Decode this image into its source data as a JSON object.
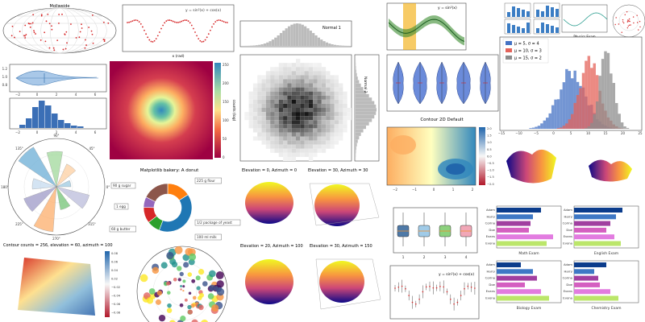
{
  "colors": {
    "blue": "#4472c4",
    "red": "#e4635a",
    "gray": "#8c8c8c",
    "teal": "#2a9d8f",
    "green": "#3a8c2e",
    "orange": "#f2a900",
    "violin": "#5b7fd6"
  },
  "mollweide": {
    "title": "Mollweide"
  },
  "sine_dots": {
    "legend": "y = sin²(x) + cos(x)",
    "xlabel": "x (rad)"
  },
  "normal_top": {
    "label": "Normal 1"
  },
  "band_line": {
    "legend": "y = sin²(x)"
  },
  "physics": {
    "label": "Physics Exam"
  },
  "hist_overlap": {
    "legend": [
      "μ = 5, σ = 4",
      "μ = 10, σ = 3",
      "μ = 15, σ = 2"
    ],
    "ticks": [
      "−15",
      "−10",
      "−5",
      "0",
      "5",
      "10",
      "15",
      "20",
      "25"
    ]
  },
  "violin_h": {
    "ticks": [
      "−2",
      "0",
      "2",
      "4",
      "6"
    ],
    "yticks": [
      "1.2",
      "1.0",
      "0.8"
    ]
  },
  "hist_small": {
    "ticks": [
      "−2",
      "0",
      "2",
      "4",
      "6"
    ]
  },
  "heatmap": {
    "colorbar_label": "counts (log)",
    "ticks": [
      "250",
      "200",
      "150",
      "100",
      "50",
      "0"
    ]
  },
  "gray_hist": {
    "ylabel": "Normal 2"
  },
  "violins": {
    "ticks": [
      "1.0",
      "1.5",
      "2.0",
      "2.5",
      "3.0",
      "3.5",
      "4.0",
      "4.5",
      "5.0"
    ]
  },
  "contour": {
    "title": "Contour 2D Default",
    "cb_ticks": [
      "2.0",
      "1.5",
      "1.0",
      "0.5",
      "0.0",
      "−0.5",
      "−1.0",
      "−1.5",
      "−2.0"
    ],
    "xticks": [
      "−2",
      "−1",
      "0",
      "1",
      "2"
    ]
  },
  "polar_bars": {
    "angles": [
      "90°",
      "180°",
      "270°",
      "0°",
      "45°",
      "135°",
      "225°",
      "315°"
    ]
  },
  "donut": {
    "title": "Matplotlib bakery: A donut",
    "labels": [
      "90 g sugar",
      "225 g flour",
      "1 egg",
      "60 g butter",
      "1/2 package of yeast",
      "100 ml milk"
    ],
    "values": [
      90,
      225,
      50,
      60,
      40,
      100
    ]
  },
  "surfaces": {
    "elev0": "Elevation = 0, Azimuth = 0",
    "elev30": "Elevation = 30, Azimuth = 30",
    "elev20_100": "Elevation = 20, Azimuth = 100",
    "elev30_150": "Elevation = 30, Azimuth = 150"
  },
  "boxplots": {
    "ticks": [
      "1",
      "2",
      "3",
      "4"
    ]
  },
  "bars_math": {
    "label": "Math Exam",
    "names": [
      "Adam",
      "Harry",
      "Corina",
      "Doe",
      "Evans",
      "Evona"
    ]
  },
  "bars_english": {
    "label": "English Exam",
    "names": [
      "Adam",
      "Harry",
      "Corina",
      "Doe",
      "Evans",
      "Evona"
    ]
  },
  "bars_biology": {
    "label": "Biology Exam",
    "names": [
      "Adam",
      "Harry",
      "Corina",
      "Doe",
      "Evans",
      "Evona"
    ]
  },
  "bars_chem": {
    "label": "Chemistry Exam",
    "names": [
      "Adam",
      "Harry",
      "Corina",
      "Doe",
      "Evans",
      "Evona"
    ]
  },
  "contour3d": {
    "title": "Contour counts = 256, elevation = 60, azimuth = 100",
    "cb_ticks": [
      "0.08",
      "0.06",
      "0.04",
      "0.02",
      "−0.02",
      "−0.04",
      "−0.06",
      "−0.08"
    ]
  },
  "errorbar": {
    "legend": "y = sin²(x) + cos(x)"
  },
  "chart_data": [
    {
      "type": "line",
      "title": "",
      "legend": "y = sin²(x) + cos(x)",
      "xlabel": "x (rad)"
    },
    {
      "type": "bar",
      "title": "",
      "series": [
        {
          "name": "μ = 5, σ = 4",
          "values": []
        },
        {
          "name": "μ = 10, σ = 3",
          "values": []
        },
        {
          "name": "μ = 15, σ = 2",
          "values": []
        }
      ],
      "xlim": [
        -15,
        25
      ]
    },
    {
      "type": "pie",
      "title": "Matplotlib bakery: A donut",
      "categories": [
        "90 g sugar",
        "225 g flour",
        "1 egg",
        "60 g butter",
        "1/2 package of yeast",
        "100 ml milk"
      ],
      "values": [
        90,
        225,
        50,
        60,
        40,
        100
      ]
    },
    {
      "type": "bar",
      "title": "",
      "categories": [
        "Adam",
        "Harry",
        "Corina",
        "Doe",
        "Evans",
        "Evona"
      ],
      "series": [
        {
          "name": "Math Exam",
          "values": [
            0.55,
            0.45,
            0.42,
            0.4,
            0.7,
            0.62
          ]
        }
      ]
    },
    {
      "type": "bar",
      "title": "",
      "categories": [
        "Adam",
        "Harry",
        "Corina",
        "Doe",
        "Evans",
        "Evona"
      ],
      "series": [
        {
          "name": "English Exam",
          "values": [
            0.6,
            0.52,
            0.45,
            0.4,
            0.5,
            0.58
          ]
        }
      ]
    },
    {
      "type": "bar",
      "title": "",
      "categories": [
        "Adam",
        "Harry",
        "Corina",
        "Doe",
        "Evans",
        "Evona"
      ],
      "series": [
        {
          "name": "Biology Exam",
          "values": [
            0.3,
            0.45,
            0.5,
            0.35,
            0.55,
            0.65
          ]
        }
      ]
    },
    {
      "type": "bar",
      "title": "",
      "categories": [
        "Adam",
        "Harry",
        "Corina",
        "Doe",
        "Evans",
        "Evona"
      ],
      "series": [
        {
          "name": "Chemistry Exam",
          "values": [
            0.4,
            0.25,
            0.3,
            0.32,
            0.45,
            0.55
          ]
        }
      ]
    }
  ]
}
